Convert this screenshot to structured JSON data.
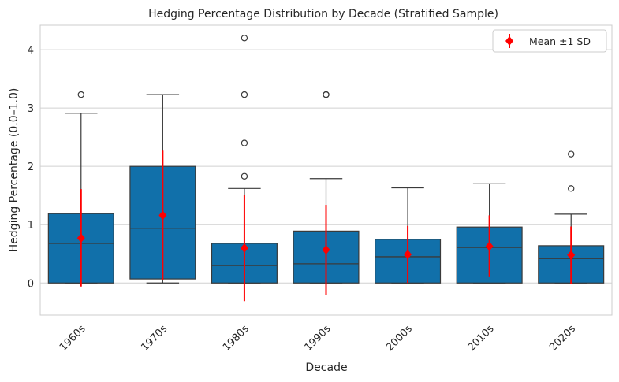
{
  "chart_data": {
    "type": "box",
    "title": "Hedging Percentage Distribution by Decade (Stratified Sample)",
    "xlabel": "Decade",
    "ylabel": "Hedging Percentage (0.0–1.0)",
    "categories": [
      "1960s",
      "1970s",
      "1980s",
      "1990s",
      "2000s",
      "2010s",
      "2020s"
    ],
    "ylim": [
      -0.55,
      4.42
    ],
    "yticks": [
      0,
      1,
      2,
      3,
      4
    ],
    "grid": true,
    "legend": {
      "position": "top-right",
      "label": "Mean ±1 SD"
    },
    "boxes": [
      {
        "category": "1960s",
        "whisker_low": 0,
        "q1": 0,
        "median": 0.68,
        "q3": 1.19,
        "whisker_high": 2.91,
        "outliers": [
          3.23
        ]
      },
      {
        "category": "1970s",
        "whisker_low": 0,
        "q1": 0.07,
        "median": 0.94,
        "q3": 2.0,
        "whisker_high": 3.23,
        "outliers": []
      },
      {
        "category": "1980s",
        "whisker_low": 0,
        "q1": 0,
        "median": 0.3,
        "q3": 0.68,
        "whisker_high": 1.62,
        "outliers": [
          1.83,
          2.4,
          3.23,
          4.2
        ]
      },
      {
        "category": "1990s",
        "whisker_low": 0,
        "q1": 0,
        "median": 0.33,
        "q3": 0.89,
        "whisker_high": 1.79,
        "outliers": [
          3.23,
          3.23
        ]
      },
      {
        "category": "2000s",
        "whisker_low": 0,
        "q1": 0,
        "median": 0.45,
        "q3": 0.75,
        "whisker_high": 1.63,
        "outliers": []
      },
      {
        "category": "2010s",
        "whisker_low": 0,
        "q1": 0,
        "median": 0.61,
        "q3": 0.96,
        "whisker_high": 1.7,
        "outliers": []
      },
      {
        "category": "2020s",
        "whisker_low": 0,
        "q1": 0,
        "median": 0.42,
        "q3": 0.64,
        "whisker_high": 1.18,
        "outliers": [
          1.62,
          2.21
        ]
      }
    ],
    "means": [
      {
        "category": "1960s",
        "mean": 0.77,
        "sd_low": -0.06,
        "sd_high": 1.61
      },
      {
        "category": "1970s",
        "mean": 1.16,
        "sd_low": 0.05,
        "sd_high": 2.27
      },
      {
        "category": "1980s",
        "mean": 0.6,
        "sd_low": -0.31,
        "sd_high": 1.51
      },
      {
        "category": "1990s",
        "mean": 0.57,
        "sd_low": -0.2,
        "sd_high": 1.34
      },
      {
        "category": "2000s",
        "mean": 0.49,
        "sd_low": 0.0,
        "sd_high": 0.98
      },
      {
        "category": "2010s",
        "mean": 0.63,
        "sd_low": 0.1,
        "sd_high": 1.16
      },
      {
        "category": "2020s",
        "mean": 0.48,
        "sd_low": -0.01,
        "sd_high": 0.97
      }
    ],
    "colors": {
      "box": "#1170aa",
      "box_edge": "#3a3a3a",
      "mean": "#ff0000",
      "grid": "#d0d0d0",
      "frame": "#cccccc"
    }
  }
}
